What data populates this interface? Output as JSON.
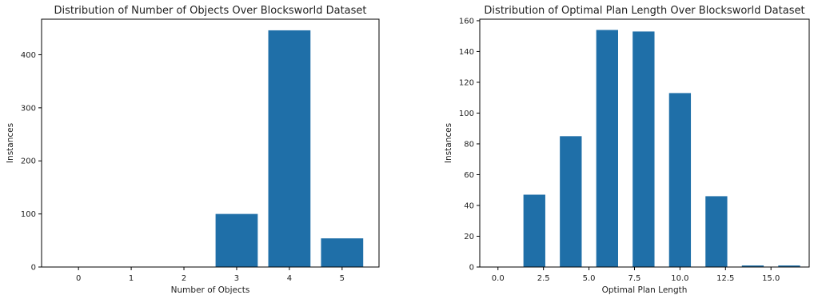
{
  "chart_data": [
    {
      "type": "bar",
      "title": "Distribution of Number of Objects Over Blocksworld Dataset",
      "xlabel": "Number of Objects",
      "ylabel": "Instances",
      "x_ticks": [
        0,
        1,
        2,
        3,
        4,
        5
      ],
      "y_ticks": [
        0,
        100,
        200,
        300,
        400
      ],
      "xlim": [
        -0.7,
        5.7
      ],
      "ylim": [
        0,
        467
      ],
      "bar_width": 0.8,
      "bar_color": "#1f6fa8",
      "x": [
        3,
        4,
        5
      ],
      "values": [
        100,
        446,
        54
      ],
      "grid": false,
      "legend": "none"
    },
    {
      "type": "bar",
      "title": "Distribution of Optimal Plan Length Over Blocksworld Dataset",
      "xlabel": "Optimal Plan Length",
      "ylabel": "Instances",
      "x_ticks": [
        0.0,
        2.5,
        5.0,
        7.5,
        10.0,
        12.5,
        15.0
      ],
      "x_tick_labels": [
        "0.0",
        "2.5",
        "5.0",
        "7.5",
        "10.0",
        "12.5",
        "15.0"
      ],
      "y_ticks": [
        0,
        20,
        40,
        60,
        80,
        100,
        120,
        140,
        160
      ],
      "xlim": [
        -1.0,
        17.1
      ],
      "ylim": [
        0,
        161
      ],
      "bar_width": 1.2,
      "bar_color": "#1f6fa8",
      "x": [
        2,
        4,
        6,
        8,
        10,
        12,
        14,
        16
      ],
      "values": [
        47,
        85,
        154,
        153,
        113,
        46,
        1,
        1
      ],
      "grid": false,
      "legend": "none"
    }
  ]
}
